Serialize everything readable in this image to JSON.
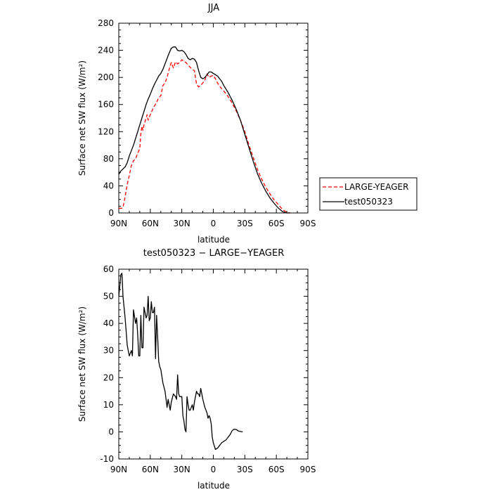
{
  "chart_data": [
    {
      "type": "line",
      "title": "JJA",
      "xlabel": "latitude",
      "ylabel": "Surface net SW flux (W/m²)",
      "xlim": [
        90,
        -90
      ],
      "ylim": [
        0,
        280
      ],
      "xticks": [
        90,
        60,
        30,
        0,
        -30,
        -60,
        -90
      ],
      "xtick_labels": [
        "90N",
        "60N",
        "30N",
        "0",
        "30S",
        "60S",
        "90S"
      ],
      "yticks": [
        0,
        40,
        80,
        120,
        160,
        200,
        240,
        280
      ],
      "legend_position": "right",
      "series": [
        {
          "name": "LARGE-YEAGER",
          "color": "#ff0000",
          "style": "dashed",
          "points": [
            [
              90,
              7
            ],
            [
              87,
              7
            ],
            [
              86,
              8
            ],
            [
              84,
              24
            ],
            [
              82,
              42
            ],
            [
              80,
              55
            ],
            [
              78,
              70
            ],
            [
              76,
              77
            ],
            [
              74,
              80
            ],
            [
              72,
              88
            ],
            [
              70,
              95
            ],
            [
              69,
              118
            ],
            [
              68,
              128
            ],
            [
              67,
              122
            ],
            [
              66,
              130
            ],
            [
              64,
              140
            ],
            [
              63,
              145
            ],
            [
              62,
              137
            ],
            [
              60,
              145
            ],
            [
              58,
              152
            ],
            [
              56,
              158
            ],
            [
              54,
              163
            ],
            [
              52,
              170
            ],
            [
              50,
              173
            ],
            [
              48,
              188
            ],
            [
              46,
              192
            ],
            [
              44,
              200
            ],
            [
              42,
              212
            ],
            [
              40,
              222
            ],
            [
              38,
              214
            ],
            [
              36,
              223
            ],
            [
              34,
              220
            ],
            [
              32,
              222
            ],
            [
              30,
              226
            ],
            [
              28,
              224
            ],
            [
              26,
              222
            ],
            [
              24,
              218
            ],
            [
              22,
              215
            ],
            [
              20,
              212
            ],
            [
              18,
              210
            ],
            [
              16,
              190
            ],
            [
              14,
              186
            ],
            [
              12,
              188
            ],
            [
              10,
              192
            ],
            [
              8,
              196
            ],
            [
              6,
              205
            ],
            [
              4,
              200
            ],
            [
              2,
              202
            ],
            [
              0,
              203
            ],
            [
              -2,
              198
            ],
            [
              -4,
              192
            ],
            [
              -6,
              187
            ],
            [
              -8,
              183
            ],
            [
              -10,
              180
            ],
            [
              -14,
              172
            ],
            [
              -18,
              162
            ],
            [
              -22,
              150
            ],
            [
              -26,
              136
            ],
            [
              -30,
              120
            ],
            [
              -34,
              100
            ],
            [
              -38,
              82
            ],
            [
              -42,
              64
            ],
            [
              -46,
              50
            ],
            [
              -50,
              38
            ],
            [
              -54,
              28
            ],
            [
              -58,
              19
            ],
            [
              -62,
              12
            ],
            [
              -66,
              5
            ],
            [
              -70,
              1
            ],
            [
              -73,
              0
            ]
          ]
        },
        {
          "name": "test050323",
          "color": "#000000",
          "style": "solid",
          "points": [
            [
              90,
              57
            ],
            [
              88,
              62
            ],
            [
              86,
              65
            ],
            [
              84,
              68
            ],
            [
              82,
              74
            ],
            [
              80,
              84
            ],
            [
              78,
              92
            ],
            [
              76,
              100
            ],
            [
              74,
              110
            ],
            [
              72,
              120
            ],
            [
              70,
              130
            ],
            [
              68,
              140
            ],
            [
              66,
              150
            ],
            [
              64,
              160
            ],
            [
              62,
              168
            ],
            [
              60,
              175
            ],
            [
              58,
              183
            ],
            [
              56,
              190
            ],
            [
              54,
              196
            ],
            [
              52,
              202
            ],
            [
              50,
              206
            ],
            [
              48,
              212
            ],
            [
              46,
              220
            ],
            [
              44,
              228
            ],
            [
              42,
              236
            ],
            [
              40,
              243
            ],
            [
              38,
              245
            ],
            [
              36,
              245
            ],
            [
              34,
              240
            ],
            [
              32,
              239
            ],
            [
              30,
              240
            ],
            [
              28,
              238
            ],
            [
              26,
              234
            ],
            [
              24,
              228
            ],
            [
              22,
              226
            ],
            [
              20,
              228
            ],
            [
              18,
              227
            ],
            [
              16,
              222
            ],
            [
              14,
              210
            ],
            [
              12,
              200
            ],
            [
              10,
              198
            ],
            [
              8,
              200
            ],
            [
              6,
              204
            ],
            [
              4,
              208
            ],
            [
              2,
              208
            ],
            [
              0,
              206
            ],
            [
              -2,
              204
            ],
            [
              -4,
              202
            ],
            [
              -6,
              198
            ],
            [
              -8,
              194
            ],
            [
              -10,
              188
            ],
            [
              -14,
              178
            ],
            [
              -18,
              166
            ],
            [
              -22,
              152
            ],
            [
              -26,
              136
            ],
            [
              -30,
              116
            ],
            [
              -34,
              96
            ],
            [
              -38,
              76
            ],
            [
              -42,
              58
            ],
            [
              -46,
              44
            ],
            [
              -50,
              32
            ],
            [
              -54,
              22
            ],
            [
              -58,
              14
            ],
            [
              -62,
              7
            ],
            [
              -66,
              2
            ],
            [
              -70,
              0
            ],
            [
              -73,
              0
            ]
          ]
        }
      ]
    },
    {
      "type": "line",
      "title": "test050323 − LARGE−YEAGER",
      "xlabel": "latitude",
      "ylabel": "Surface net SW flux (W/m²)",
      "xlim": [
        90,
        -90
      ],
      "ylim": [
        -10,
        60
      ],
      "xticks": [
        90,
        60,
        30,
        0,
        -30,
        -60,
        -90
      ],
      "xtick_labels": [
        "90N",
        "60N",
        "30N",
        "0",
        "30S",
        "60S",
        "90S"
      ],
      "yticks": [
        -10,
        0,
        10,
        20,
        30,
        40,
        50,
        60
      ],
      "series": [
        {
          "color": "#000000",
          "style": "solid",
          "points": [
            [
              90,
              50
            ],
            [
              88,
              58
            ],
            [
              87,
              58.5
            ],
            [
              86,
              50
            ],
            [
              84,
              42
            ],
            [
              82,
              32
            ],
            [
              80,
              28
            ],
            [
              78,
              30
            ],
            [
              77,
              28
            ],
            [
              76,
              45
            ],
            [
              74,
              40
            ],
            [
              73,
              42
            ],
            [
              72,
              36
            ],
            [
              71,
              28
            ],
            [
              70,
              28
            ],
            [
              69,
              43
            ],
            [
              68,
              31
            ],
            [
              67,
              31
            ],
            [
              66,
              46
            ],
            [
              64,
              42
            ],
            [
              63,
              43
            ],
            [
              62,
              50
            ],
            [
              61,
              41
            ],
            [
              60,
              42
            ],
            [
              59,
              48
            ],
            [
              58,
              44
            ],
            [
              57,
              44
            ],
            [
              56,
              46
            ],
            [
              55,
              27
            ],
            [
              54,
              43
            ],
            [
              53,
              35
            ],
            [
              52,
              26
            ],
            [
              51,
              24
            ],
            [
              50,
              23
            ],
            [
              48,
              18
            ],
            [
              46,
              15
            ],
            [
              44,
              9
            ],
            [
              43,
              12
            ],
            [
              42,
              10
            ],
            [
              41,
              8
            ],
            [
              40,
              11
            ],
            [
              38,
              14
            ],
            [
              36,
              13
            ],
            [
              35,
              12
            ],
            [
              34,
              21
            ],
            [
              33,
              14
            ],
            [
              32,
              13
            ],
            [
              30,
              13
            ],
            [
              29,
              6
            ],
            [
              28,
              4
            ],
            [
              27,
              1
            ],
            [
              26,
              0
            ],
            [
              25,
              13
            ],
            [
              24,
              10
            ],
            [
              23,
              8
            ],
            [
              22,
              8
            ],
            [
              21,
              9
            ],
            [
              20,
              10
            ],
            [
              19,
              8
            ],
            [
              18,
              11
            ],
            [
              17,
              13
            ],
            [
              16,
              15
            ],
            [
              15,
              14
            ],
            [
              14,
              14
            ],
            [
              13,
              13
            ],
            [
              12,
              16
            ],
            [
              10,
              12
            ],
            [
              8,
              9
            ],
            [
              6,
              7
            ],
            [
              5,
              5
            ],
            [
              4,
              6
            ],
            [
              3,
              5
            ],
            [
              2,
              3
            ],
            [
              1,
              -2
            ],
            [
              0,
              -4
            ],
            [
              -2,
              -6.5
            ],
            [
              -4,
              -6
            ],
            [
              -6,
              -5
            ],
            [
              -8,
              -4
            ],
            [
              -10,
              -3.5
            ],
            [
              -12,
              -3
            ],
            [
              -14,
              -2
            ],
            [
              -16,
              -1
            ],
            [
              -18,
              0.5
            ],
            [
              -20,
              1
            ],
            [
              -22,
              0.8
            ],
            [
              -24,
              0.3
            ],
            [
              -26,
              0.1
            ],
            [
              -28,
              0
            ]
          ]
        }
      ]
    }
  ]
}
